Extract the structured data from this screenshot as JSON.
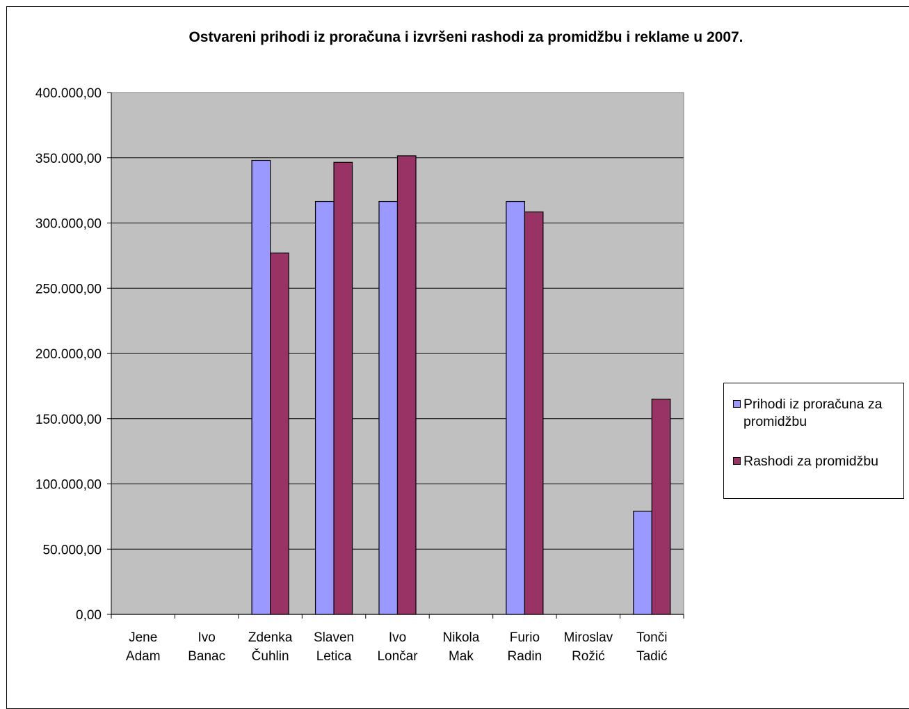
{
  "chart_data": {
    "type": "bar",
    "title": "Ostvareni prihodi iz proračuna i izvršeni rashodi za promidžbu i reklame u 2007.",
    "categories": [
      [
        "Jene",
        "Adam"
      ],
      [
        "Ivo",
        "Banac"
      ],
      [
        "Zdenka",
        "Čuhlin"
      ],
      [
        "Slaven",
        "Letica"
      ],
      [
        "Ivo",
        "Lončar"
      ],
      [
        "Nikola",
        "Mak"
      ],
      [
        "Furio",
        "Radin"
      ],
      [
        "Miroslav",
        "Rožić"
      ],
      [
        "Tonči",
        "Tadić"
      ]
    ],
    "series": [
      {
        "name": "Prihodi iz proračuna za promidžbu",
        "color": "#9999ff",
        "values": [
          0,
          0,
          348000,
          316500,
          316500,
          0,
          316500,
          0,
          79000
        ]
      },
      {
        "name": "Rashodi za promidžbu",
        "color": "#993366",
        "values": [
          0,
          0,
          277000,
          346500,
          351500,
          0,
          308500,
          0,
          165000
        ]
      }
    ],
    "yticks": [
      "0,00",
      "50.000,00",
      "100.000,00",
      "150.000,00",
      "200.000,00",
      "250.000,00",
      "300.000,00",
      "350.000,00",
      "400.000,00"
    ],
    "ylim": [
      0,
      400000
    ],
    "grid": true,
    "plot_background": "#c0c0c0",
    "legend_position": "right"
  }
}
